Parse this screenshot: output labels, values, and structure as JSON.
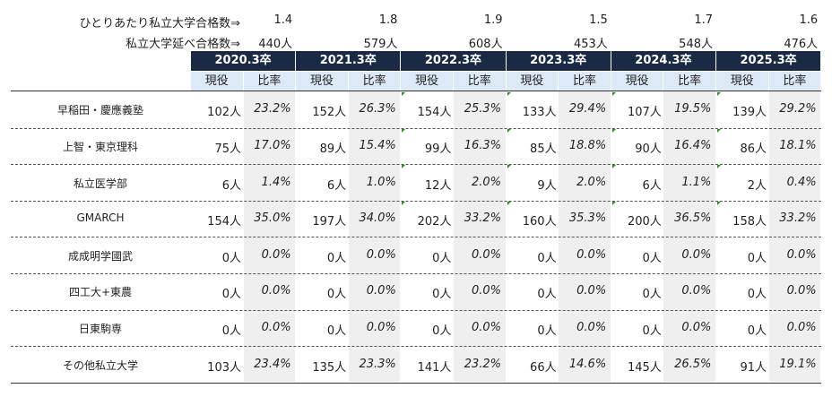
{
  "summary": {
    "per_person_label": "ひとりあたり私立大学合格数⇒",
    "per_person_values": [
      "1.4",
      "1.8",
      "1.9",
      "1.5",
      "1.7",
      "1.6"
    ],
    "total_label": "私立大学延べ合格数⇒",
    "total_values": [
      "440人",
      "579人",
      "608人",
      "453人",
      "548人",
      "476人"
    ]
  },
  "years": [
    "2020.3卒",
    "2021.3卒",
    "2022.3卒",
    "2023.3卒",
    "2024.3卒",
    "2025.3卒"
  ],
  "subheaders": {
    "count": "現役",
    "ratio": "比率"
  },
  "rows": [
    {
      "name": "早稲田・慶應義塾",
      "cells": [
        [
          "102人",
          "23.2%"
        ],
        [
          "152人",
          "26.3%"
        ],
        [
          "154人",
          "25.3%"
        ],
        [
          "133人",
          "29.4%"
        ],
        [
          "107人",
          "19.5%"
        ],
        [
          "139人",
          "29.2%"
        ]
      ]
    },
    {
      "name": "上智・東京理科",
      "cells": [
        [
          "75人",
          "17.0%"
        ],
        [
          "89人",
          "15.4%"
        ],
        [
          "99人",
          "16.3%"
        ],
        [
          "85人",
          "18.8%"
        ],
        [
          "90人",
          "16.4%"
        ],
        [
          "86人",
          "18.1%"
        ]
      ]
    },
    {
      "name": "私立医学部",
      "cells": [
        [
          "6人",
          "1.4%"
        ],
        [
          "6人",
          "1.0%"
        ],
        [
          "12人",
          "2.0%"
        ],
        [
          "9人",
          "2.0%"
        ],
        [
          "6人",
          "1.1%"
        ],
        [
          "2人",
          "0.4%"
        ]
      ]
    },
    {
      "name": "GMARCH",
      "cells": [
        [
          "154人",
          "35.0%"
        ],
        [
          "197人",
          "34.0%"
        ],
        [
          "202人",
          "33.2%"
        ],
        [
          "160人",
          "35.3%"
        ],
        [
          "200人",
          "36.5%"
        ],
        [
          "158人",
          "33.2%"
        ]
      ]
    },
    {
      "name": "成成明学國武",
      "cells": [
        [
          "0人",
          "0.0%"
        ],
        [
          "0人",
          "0.0%"
        ],
        [
          "0人",
          "0.0%"
        ],
        [
          "0人",
          "0.0%"
        ],
        [
          "0人",
          "0.0%"
        ],
        [
          "0人",
          "0.0%"
        ]
      ]
    },
    {
      "name": "四工大+東農",
      "cells": [
        [
          "0人",
          "0.0%"
        ],
        [
          "0人",
          "0.0%"
        ],
        [
          "0人",
          "0.0%"
        ],
        [
          "0人",
          "0.0%"
        ],
        [
          "0人",
          "0.0%"
        ],
        [
          "0人",
          "0.0%"
        ]
      ]
    },
    {
      "name": "日東駒専",
      "cells": [
        [
          "0人",
          "0.0%"
        ],
        [
          "0人",
          "0.0%"
        ],
        [
          "0人",
          "0.0%"
        ],
        [
          "0人",
          "0.0%"
        ],
        [
          "0人",
          "0.0%"
        ],
        [
          "0人",
          "0.0%"
        ]
      ]
    },
    {
      "name": "その他私立大学",
      "cells": [
        [
          "103人",
          "23.4%"
        ],
        [
          "135人",
          "23.3%"
        ],
        [
          "141人",
          "23.2%"
        ],
        [
          "66人",
          "14.6%"
        ],
        [
          "145人",
          "26.5%"
        ],
        [
          "91人",
          "19.1%"
        ]
      ]
    }
  ],
  "colors": {
    "header_bg": "#1b2a44",
    "subheader_bg": "#dde9f7",
    "ratio_shade": "#efefef",
    "marker": "#2e8b2e"
  }
}
